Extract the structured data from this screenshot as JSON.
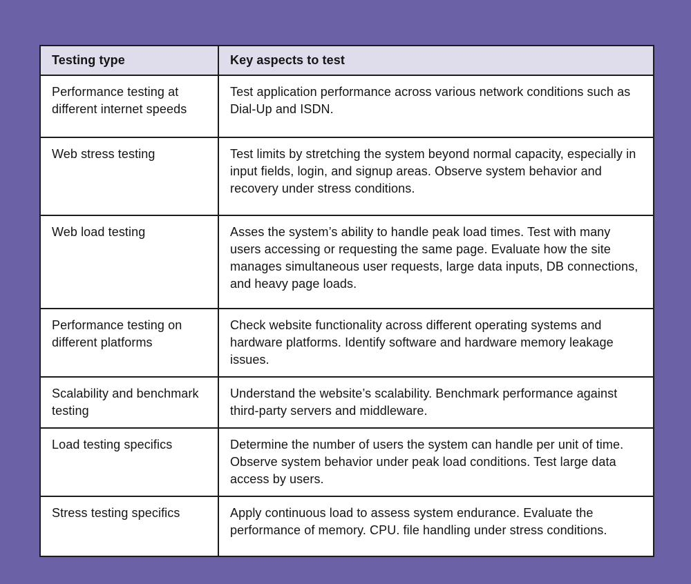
{
  "page": {
    "background_color": "#6a61a7"
  },
  "table": {
    "border_color": "#1b1b1b",
    "header_background_color": "#dfddec",
    "body_background_color": "#ffffff",
    "headers": [
      "Testing type",
      "Key aspects to test"
    ],
    "rows": [
      {
        "testing_type": "Performance testing at different internet speeds",
        "key_aspects": "Test application performance across various network conditions such as Dial-Up and ISDN."
      },
      {
        "testing_type": "Web stress testing",
        "key_aspects": "Test limits by stretching the system beyond normal capacity, especially in input fields, login, and signup areas. Observe system behavior and recovery under stress conditions."
      },
      {
        "testing_type": "Web load testing",
        "key_aspects": "Asses the system’s ability to handle peak load times. Test with many users accessing or requesting the same page. Evaluate how the site manages simultaneous user requests, large data inputs, DB connections, and heavy page loads."
      },
      {
        "testing_type": "Performance testing on different platforms",
        "key_aspects": "Check website functionality across different operating systems and hardware platforms. Identify software and hardware memory leakage issues."
      },
      {
        "testing_type": "Scalability and benchmark testing",
        "key_aspects": "Understand the website’s scalability. Benchmark performance against third-party servers and middleware."
      },
      {
        "testing_type": "Load testing specifics",
        "key_aspects": "Determine the number of users the system can handle per unit of time. Observe system behavior under peak load conditions. Test large data access by users."
      },
      {
        "testing_type": "Stress testing specifics",
        "key_aspects": "Apply continuous load to assess system endurance. Evaluate the performance of memory. CPU. file handling under stress conditions."
      }
    ]
  }
}
